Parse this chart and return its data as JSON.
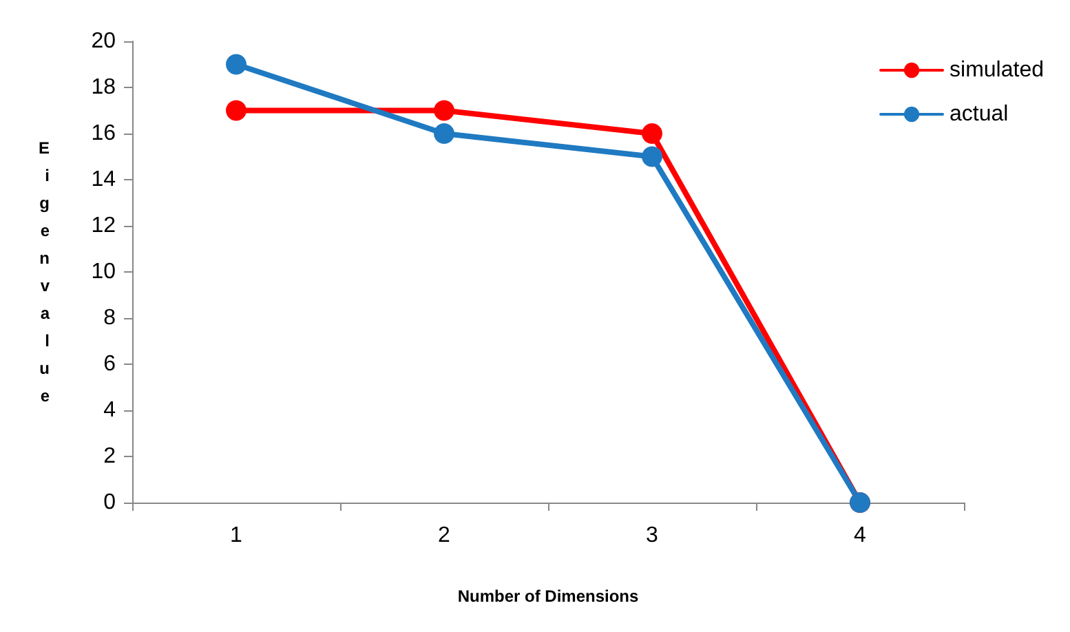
{
  "chart_data": {
    "type": "line",
    "xlabel": "Number of Dimensions",
    "ylabel": "Eigenvalue",
    "categories": [
      "1",
      "2",
      "3",
      "4"
    ],
    "series": [
      {
        "name": "simulated",
        "color": "#ff0000",
        "values": [
          17,
          17,
          16,
          0
        ]
      },
      {
        "name": "actual",
        "color": "#1f7ac2",
        "values": [
          19,
          16,
          15,
          0
        ]
      }
    ],
    "ylim": [
      0,
      20
    ],
    "yticks": [
      0,
      2,
      4,
      6,
      8,
      10,
      12,
      14,
      16,
      18,
      20
    ],
    "grid": false,
    "legend": "top right",
    "marker": "circle",
    "line_style": "solid"
  }
}
